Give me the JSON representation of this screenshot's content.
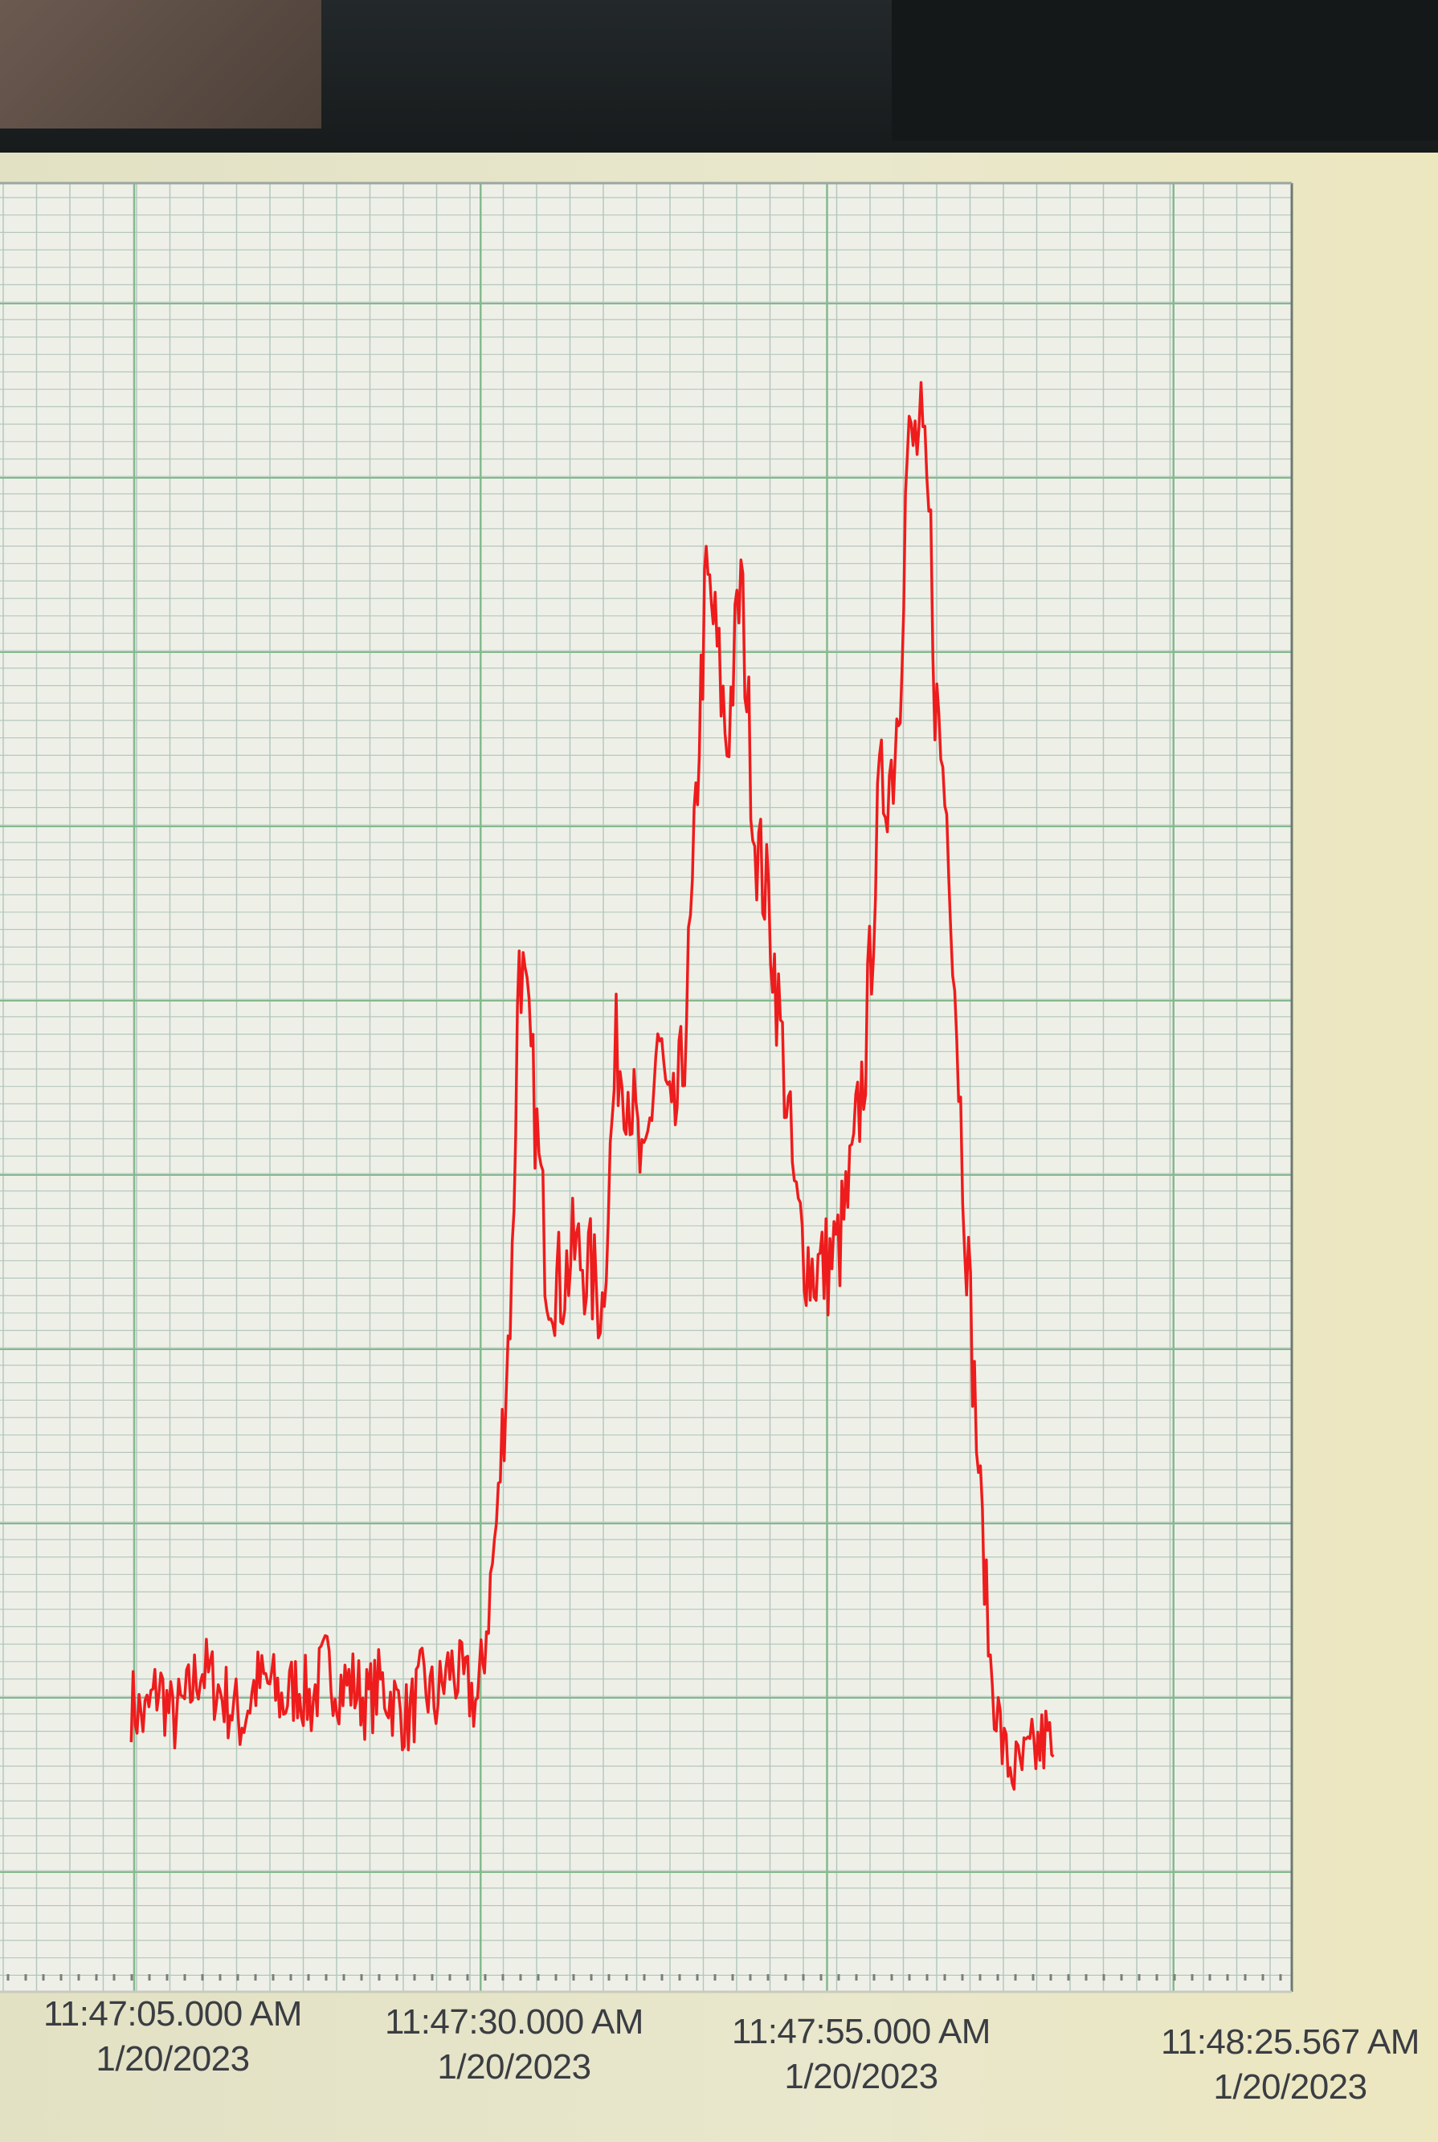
{
  "colors": {
    "line": "#ee1c1c",
    "plot_background": "#eef0e8",
    "minor_grid": "#b4c7bd",
    "major_grid": "#84b98d",
    "frame": "#e8e6c9"
  },
  "chart_data": {
    "type": "line",
    "title": "",
    "xlabel": "",
    "ylabel": "",
    "grid": true,
    "legend": "none",
    "y_axis_labels_visible": false,
    "xlim": [
      -3,
      63.567
    ],
    "ylim": [
      0,
      100
    ],
    "x_unit": "seconds after 11:47:05.000 AM",
    "x_tick_labels": [
      {
        "time": "11:47:05.000 AM",
        "date": "1/20/2023",
        "x": 0
      },
      {
        "time": "11:47:30.000 AM",
        "date": "1/20/2023",
        "x": 25
      },
      {
        "time": "11:47:55.000 AM",
        "date": "1/20/2023",
        "x": 50
      },
      {
        "time": "11:48:25.567 AM",
        "date": "1/20/2023",
        "x": 80.567
      }
    ],
    "series": [
      {
        "x": [
          -3,
          -2,
          -1,
          0,
          1,
          2,
          3,
          4,
          5,
          6,
          7,
          8,
          9,
          10,
          11,
          12,
          13,
          14,
          15,
          16,
          17,
          18,
          19,
          20,
          21,
          22,
          22.5,
          23.5,
          24.2,
          24.5,
          25,
          26,
          27,
          28,
          29,
          30,
          31,
          32,
          33,
          34,
          35,
          36,
          36.8,
          37.5,
          38,
          38.5,
          39,
          40,
          41,
          42,
          43,
          44,
          45,
          46,
          47,
          48,
          49,
          50,
          51,
          52,
          52.5,
          53,
          54,
          54.7,
          55,
          56,
          57,
          58,
          59,
          60,
          61,
          62,
          63,
          63.567
        ],
        "y": [
          16,
          15,
          17,
          15,
          16,
          18,
          17,
          16,
          15,
          17,
          17,
          16,
          17,
          16,
          18,
          17,
          17,
          16,
          17,
          16,
          15,
          17,
          16,
          18,
          17,
          16,
          19,
          27,
          36,
          40,
          58,
          50,
          40,
          39,
          41,
          40,
          38,
          52,
          50,
          44,
          53,
          47,
          51,
          60,
          70,
          78,
          76,
          69,
          78,
          64,
          60,
          52,
          43,
          40,
          40,
          41,
          45,
          52,
          66,
          68,
          73,
          85,
          86,
          80,
          72,
          64,
          46,
          31,
          18,
          13,
          12,
          13,
          14,
          13
        ]
      }
    ]
  }
}
